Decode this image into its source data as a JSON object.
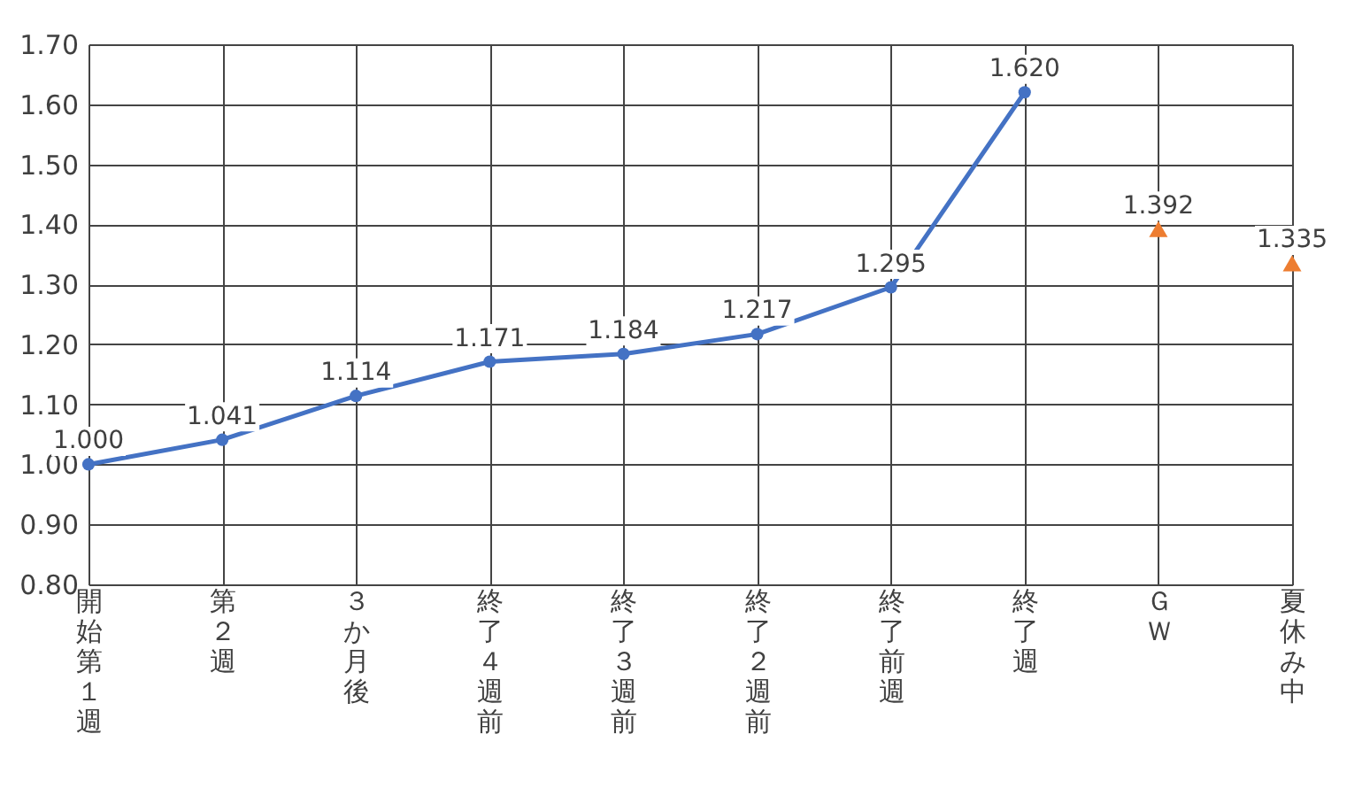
{
  "chart_data": {
    "type": "line",
    "categories": [
      "開始第１週",
      "第２週",
      "３か月後",
      "終了４週前",
      "終了３週前",
      "終了２週前",
      "終了前週",
      "終了週",
      "ＧＷ",
      "夏休み中"
    ],
    "series": [
      {
        "color": "#4472c4",
        "marker": "circle",
        "values": [
          1.0,
          1.041,
          1.114,
          1.171,
          1.184,
          1.217,
          1.295,
          1.62,
          null,
          null
        ],
        "value_labels": [
          "1.000",
          "1.041",
          "1.114",
          "1.171",
          "1.184",
          "1.217",
          "1.295",
          "1.620",
          null,
          null
        ]
      },
      {
        "type": "scatter",
        "color": "#ed7d31",
        "marker": "triangle",
        "values": [
          null,
          null,
          null,
          null,
          null,
          null,
          null,
          null,
          1.392,
          1.335
        ],
        "value_labels": [
          null,
          null,
          null,
          null,
          null,
          null,
          null,
          null,
          "1.392",
          "1.335"
        ]
      }
    ],
    "ylim": [
      0.8,
      1.7
    ],
    "yticks": [
      {
        "value": 0.8,
        "label": "0.80"
      },
      {
        "value": 0.9,
        "label": "0.90"
      },
      {
        "value": 1.0,
        "label": "1.00"
      },
      {
        "value": 1.1,
        "label": "1.10"
      },
      {
        "value": 1.2,
        "label": "1.20"
      },
      {
        "value": 1.3,
        "label": "1.30"
      },
      {
        "value": 1.4,
        "label": "1.40"
      },
      {
        "value": 1.5,
        "label": "1.50"
      },
      {
        "value": 1.6,
        "label": "1.60"
      },
      {
        "value": 1.7,
        "label": "1.70"
      }
    ],
    "grid": true,
    "legend": false
  }
}
